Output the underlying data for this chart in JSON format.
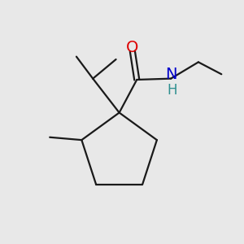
{
  "bg_color": "#e8e8e8",
  "bond_color": "#1a1a1a",
  "O_color": "#dd0000",
  "N_color": "#0000cc",
  "H_color": "#2f8f8f",
  "line_width": 1.6,
  "font_size_O": 14,
  "font_size_N": 14,
  "font_size_H": 12,
  "xlim": [
    -2.2,
    2.2
  ],
  "ylim": [
    -2.2,
    2.2
  ]
}
